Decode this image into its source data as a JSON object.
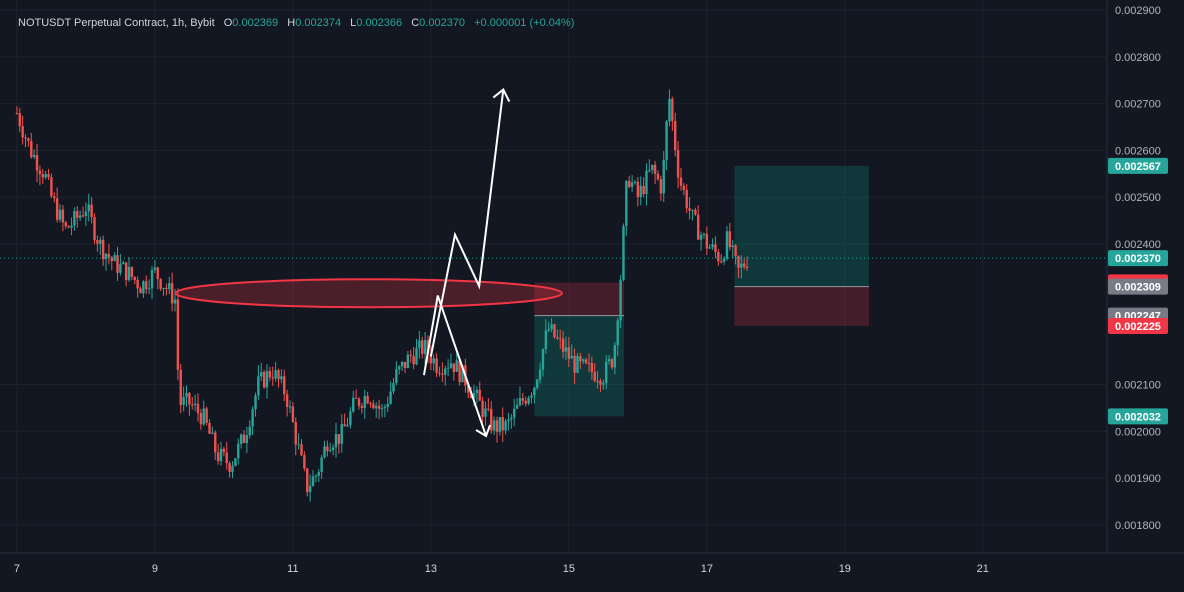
{
  "legend": {
    "symbol": "NOTUSDT Perpetual Contract, 1h, Bybit",
    "o_label": "O",
    "o": "0.002369",
    "h_label": "H",
    "h": "0.002374",
    "l_label": "L",
    "l": "0.002366",
    "c_label": "C",
    "c": "0.002370",
    "change": "+0.000001 (+0.04%)"
  },
  "colors": {
    "background": "#131722",
    "up": "#26a69a",
    "down": "#ef5350",
    "grid": "#1e222d",
    "text": "#b2b5be"
  },
  "chart_data": {
    "type": "candlestick",
    "title": "",
    "xlabel": "",
    "ylabel": "",
    "x_ticks": [
      {
        "label": "7",
        "day": 7
      },
      {
        "label": "9",
        "day": 9
      },
      {
        "label": "11",
        "day": 11
      },
      {
        "label": "13",
        "day": 13
      },
      {
        "label": "15",
        "day": 15
      },
      {
        "label": "17",
        "day": 17
      },
      {
        "label": "19",
        "day": 19
      },
      {
        "label": "21",
        "day": 21
      }
    ],
    "y_ticks": [
      "0.002900",
      "0.002800",
      "0.002700",
      "0.002600",
      "0.002500",
      "0.002400",
      "0.002100",
      "0.002000",
      "0.001900",
      "0.001800"
    ],
    "ylim": [
      0.00174,
      0.0029
    ],
    "xlim_days": [
      6.9,
      22.8
    ],
    "last_price": 0.00237,
    "price_labels": [
      {
        "text": "0.002567",
        "value": 0.002567,
        "color": "#26a69a"
      },
      {
        "text": "0.002370",
        "value": 0.00237,
        "color": "#26a69a"
      },
      {
        "text": "0.002318",
        "value": 0.002318,
        "color": "#f23645"
      },
      {
        "text": "0.002309",
        "value": 0.002309,
        "color": "#787b86"
      },
      {
        "text": "0.002247",
        "value": 0.002247,
        "color": "#787b86"
      },
      {
        "text": "0.002225",
        "value": 0.002225,
        "color": "#f23645"
      },
      {
        "text": "0.002032",
        "value": 0.002032,
        "color": "#26a69a"
      }
    ],
    "price_path": [
      [
        7.0,
        0.00268
      ],
      [
        7.2,
        0.0026
      ],
      [
        7.4,
        0.00255
      ],
      [
        7.5,
        0.0025
      ],
      [
        7.7,
        0.00243
      ],
      [
        7.9,
        0.00246
      ],
      [
        8.0,
        0.00248
      ],
      [
        8.2,
        0.0024
      ],
      [
        8.4,
        0.00236
      ],
      [
        8.6,
        0.00234
      ],
      [
        8.8,
        0.00231
      ],
      [
        9.0,
        0.00234
      ],
      [
        9.2,
        0.0023
      ],
      [
        9.3,
        0.00228
      ],
      [
        9.35,
        0.00206
      ],
      [
        9.5,
        0.00206
      ],
      [
        9.7,
        0.00203
      ],
      [
        9.9,
        0.00195
      ],
      [
        10.1,
        0.00193
      ],
      [
        10.3,
        0.00199
      ],
      [
        10.5,
        0.0021
      ],
      [
        10.7,
        0.00213
      ],
      [
        10.9,
        0.00208
      ],
      [
        11.1,
        0.00195
      ],
      [
        11.2,
        0.00188
      ],
      [
        11.35,
        0.00191
      ],
      [
        11.5,
        0.00198
      ],
      [
        11.7,
        0.00199
      ],
      [
        11.9,
        0.00206
      ],
      [
        12.1,
        0.00208
      ],
      [
        12.3,
        0.00204
      ],
      [
        12.5,
        0.00212
      ],
      [
        12.7,
        0.00216
      ],
      [
        12.9,
        0.00218
      ],
      [
        13.1,
        0.00214
      ],
      [
        13.3,
        0.00215
      ],
      [
        13.5,
        0.00211
      ],
      [
        13.7,
        0.00206
      ],
      [
        13.9,
        0.00201
      ],
      [
        14.1,
        0.00201
      ],
      [
        14.3,
        0.00206
      ],
      [
        14.5,
        0.0021
      ],
      [
        14.7,
        0.00222
      ],
      [
        14.9,
        0.00218
      ],
      [
        15.1,
        0.00214
      ],
      [
        15.3,
        0.00213
      ],
      [
        15.5,
        0.00212
      ],
      [
        15.65,
        0.00216
      ],
      [
        15.75,
        0.00233
      ],
      [
        15.85,
        0.00255
      ],
      [
        16.0,
        0.0025
      ],
      [
        16.2,
        0.00256
      ],
      [
        16.35,
        0.00252
      ],
      [
        16.45,
        0.00272
      ],
      [
        16.6,
        0.00254
      ],
      [
        16.8,
        0.00245
      ],
      [
        17.0,
        0.0024
      ],
      [
        17.2,
        0.00237
      ],
      [
        17.3,
        0.00241
      ],
      [
        17.45,
        0.00234
      ],
      [
        17.6,
        0.00237
      ]
    ],
    "annotations": {
      "ellipse": {
        "x0": 9.3,
        "x1": 14.9,
        "y": 0.002295
      },
      "white_path": [
        [
          13.0,
          0.00216
        ],
        [
          13.35,
          0.00242
        ],
        [
          13.7,
          0.00231
        ],
        [
          14.05,
          0.00273
        ]
      ],
      "white_zigzag": [
        [
          12.9,
          0.00212
        ],
        [
          13.1,
          0.00229
        ],
        [
          13.8,
          0.00199
        ]
      ],
      "position1": {
        "x0": 14.5,
        "x1": 15.8,
        "entry": 0.002247,
        "stop": 0.002318,
        "target": 0.002032
      },
      "position2": {
        "x0": 17.4,
        "x1": 19.35,
        "entry": 0.002309,
        "stop": 0.002225,
        "target": 0.002567
      }
    }
  }
}
